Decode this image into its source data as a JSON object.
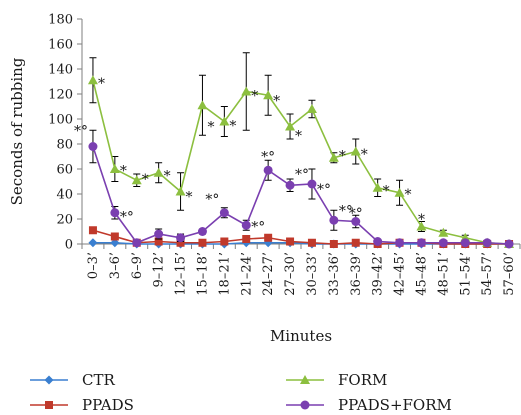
{
  "chart_data": {
    "type": "line",
    "xlabel": "Minutes",
    "ylabel": "Seconds of rubbing",
    "ylim": [
      0,
      180
    ],
    "yticks": [
      0,
      20,
      40,
      60,
      80,
      100,
      120,
      140,
      160,
      180
    ],
    "grid": false,
    "legend_position": "bottom",
    "categories": [
      "0–3’",
      "3–6’",
      "6–9’",
      "9–12’",
      "12–15’",
      "15–18’",
      "18–21’",
      "21–24’",
      "24–27’",
      "27–30’",
      "30–33’",
      "33–36’",
      "36–39’",
      "39–42’",
      "42–45’",
      "45–48’",
      "48–51’",
      "51–54’",
      "54–57’",
      "57–60’"
    ],
    "series": [
      {
        "name": "CTR",
        "color": "#3a7fd0",
        "marker": "diamond",
        "values": [
          1,
          1,
          0,
          0,
          0,
          0,
          0,
          1,
          1,
          1,
          0,
          0,
          0,
          0,
          0,
          0,
          0,
          0,
          0,
          0
        ],
        "errors": [
          0,
          0,
          0,
          0,
          0,
          0,
          0,
          0,
          0,
          0,
          0,
          0,
          0,
          0,
          0,
          0,
          0,
          0,
          0,
          0
        ]
      },
      {
        "name": "PPADS",
        "color": "#c0392b",
        "marker": "square",
        "values": [
          11,
          6,
          1,
          2,
          1,
          1,
          2,
          4,
          5,
          2,
          1,
          0,
          1,
          0,
          1,
          1,
          0,
          0,
          0,
          0
        ],
        "errors": [
          0,
          0,
          0,
          0,
          0,
          0,
          0,
          0,
          0,
          0,
          0,
          0,
          0,
          0,
          0,
          0,
          0,
          0,
          0,
          0
        ]
      },
      {
        "name": "FORM",
        "color": "#8cbf3f",
        "marker": "triangle",
        "values": [
          131,
          60,
          51,
          57,
          42,
          111,
          98,
          122,
          119,
          94,
          108,
          69,
          74,
          45,
          41,
          14,
          9,
          5,
          1,
          0
        ],
        "errors": [
          18,
          10,
          5,
          8,
          15,
          24,
          12,
          31,
          16,
          10,
          7,
          4,
          10,
          7,
          10,
          4,
          2,
          2,
          0,
          0
        ]
      },
      {
        "name": "PPADS+FORM",
        "color": "#7a3fb0",
        "marker": "circle",
        "values": [
          78,
          25,
          1,
          8,
          5,
          10,
          25,
          15,
          59,
          47,
          48,
          19,
          18,
          2,
          1,
          1,
          1,
          1,
          1,
          0
        ],
        "errors": [
          13,
          5,
          1,
          4,
          3,
          2,
          4,
          4,
          8,
          5,
          12,
          8,
          5,
          1,
          0,
          0,
          0,
          0,
          0,
          0
        ]
      }
    ],
    "annotations": [
      {
        "text": "*",
        "category": 0,
        "value": 129,
        "offset": "right"
      },
      {
        "text": "*°",
        "category": 0,
        "value": 91,
        "offset": "left"
      },
      {
        "text": "*",
        "category": 1,
        "value": 59,
        "offset": "right"
      },
      {
        "text": "*°",
        "category": 1,
        "value": 22,
        "offset": "right"
      },
      {
        "text": "*",
        "category": 2,
        "value": 52,
        "offset": "right"
      },
      {
        "text": "*",
        "category": 3,
        "value": 55,
        "offset": "right"
      },
      {
        "text": "*",
        "category": 4,
        "value": 38,
        "offset": "right"
      },
      {
        "text": "*",
        "category": 5,
        "value": 94,
        "offset": "right"
      },
      {
        "text": "*",
        "category": 6,
        "value": 95,
        "offset": "right"
      },
      {
        "text": "*°",
        "category": 6,
        "value": 36,
        "offset": "left"
      },
      {
        "text": "*",
        "category": 7,
        "value": 119,
        "offset": "right"
      },
      {
        "text": "*°",
        "category": 7,
        "value": 14,
        "offset": "right"
      },
      {
        "text": "*",
        "category": 8,
        "value": 115,
        "offset": "right"
      },
      {
        "text": "*°",
        "category": 8,
        "value": 70,
        "offset": "center"
      },
      {
        "text": "*",
        "category": 9,
        "value": 87,
        "offset": "right"
      },
      {
        "text": "*°",
        "category": 9,
        "value": 56,
        "offset": "right"
      },
      {
        "text": "*°",
        "category": 10,
        "value": 44,
        "offset": "right"
      },
      {
        "text": "*",
        "category": 11,
        "value": 71,
        "offset": "right"
      },
      {
        "text": "*°",
        "category": 11,
        "value": 27,
        "offset": "right"
      },
      {
        "text": "*",
        "category": 12,
        "value": 72,
        "offset": "right"
      },
      {
        "text": "*°",
        "category": 12,
        "value": 25,
        "offset": "center"
      },
      {
        "text": "*",
        "category": 13,
        "value": 43,
        "offset": "right"
      },
      {
        "text": "*",
        "category": 14,
        "value": 40,
        "offset": "right"
      },
      {
        "text": "*",
        "category": 15,
        "value": 20,
        "offset": "center"
      }
    ]
  }
}
